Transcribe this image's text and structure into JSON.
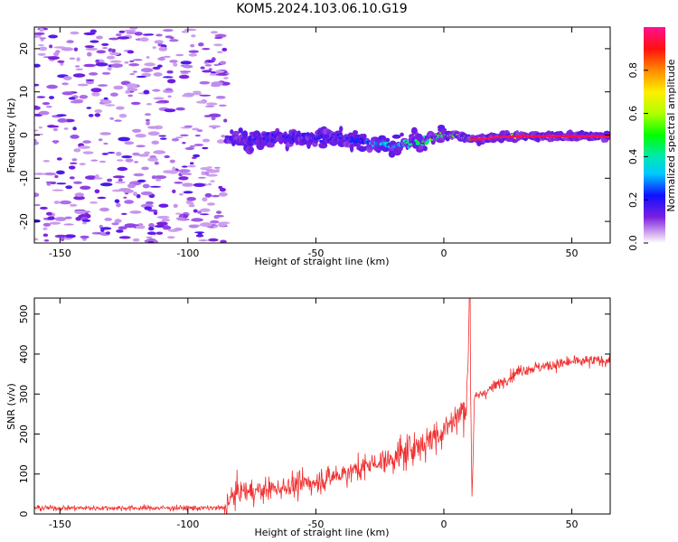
{
  "title": "KOM5.2024.103.06.10.G19",
  "chart_data": [
    {
      "type": "heatmap",
      "xlabel": "Height of straight line (km)",
      "ylabel": "Frequency (Hz)",
      "xlim": [
        -160,
        65
      ],
      "ylim": [
        -25,
        25
      ],
      "xticks": [
        -150,
        -100,
        -50,
        0,
        50
      ],
      "yticks": [
        -20,
        -10,
        0,
        10,
        20
      ],
      "colorbar": {
        "label": "Normalized spectral amplitude",
        "ticks": [
          0.0,
          0.2,
          0.4,
          0.6,
          0.8
        ],
        "range": [
          0,
          1
        ]
      },
      "noise_region_x": [
        -160,
        -85
      ],
      "ridge_line": {
        "x": [
          -85,
          -75,
          -65,
          -55,
          -45,
          -35,
          -25,
          -20,
          -15,
          -10,
          -5,
          0,
          5,
          10,
          15,
          20,
          30,
          40,
          50,
          65
        ],
        "y": [
          -1,
          -1,
          -0.5,
          -0.5,
          -0.5,
          -1.2,
          -2,
          -2.5,
          -2,
          -1.5,
          -0.8,
          0,
          0,
          -1,
          -1,
          -0.5,
          -0.3,
          -0.3,
          -0.3,
          -0.3
        ],
        "amplitude": [
          0.15,
          0.2,
          0.2,
          0.2,
          0.2,
          0.22,
          0.3,
          0.35,
          0.4,
          0.45,
          0.5,
          0.55,
          0.55,
          0.55,
          0.6,
          0.7,
          0.85,
          0.9,
          0.95,
          0.95
        ]
      }
    },
    {
      "type": "line",
      "xlabel": "Height of straight line (km)",
      "ylabel": "SNR (v/v)",
      "xlim": [
        -160,
        65
      ],
      "ylim": [
        0,
        540
      ],
      "xticks": [
        -150,
        -100,
        -50,
        0,
        50
      ],
      "yticks": [
        0,
        100,
        200,
        300,
        400,
        500
      ],
      "color": "#f03030",
      "trend": {
        "x": [
          -160,
          -86,
          -82,
          -70,
          -50,
          -35,
          -20,
          -10,
          0,
          5,
          9,
          10,
          11,
          12,
          20,
          30,
          40,
          50,
          65
        ],
        "y": [
          15,
          15,
          50,
          60,
          80,
          110,
          140,
          170,
          210,
          240,
          270,
          540,
          50,
          290,
          320,
          360,
          370,
          380,
          385
        ]
      }
    }
  ]
}
